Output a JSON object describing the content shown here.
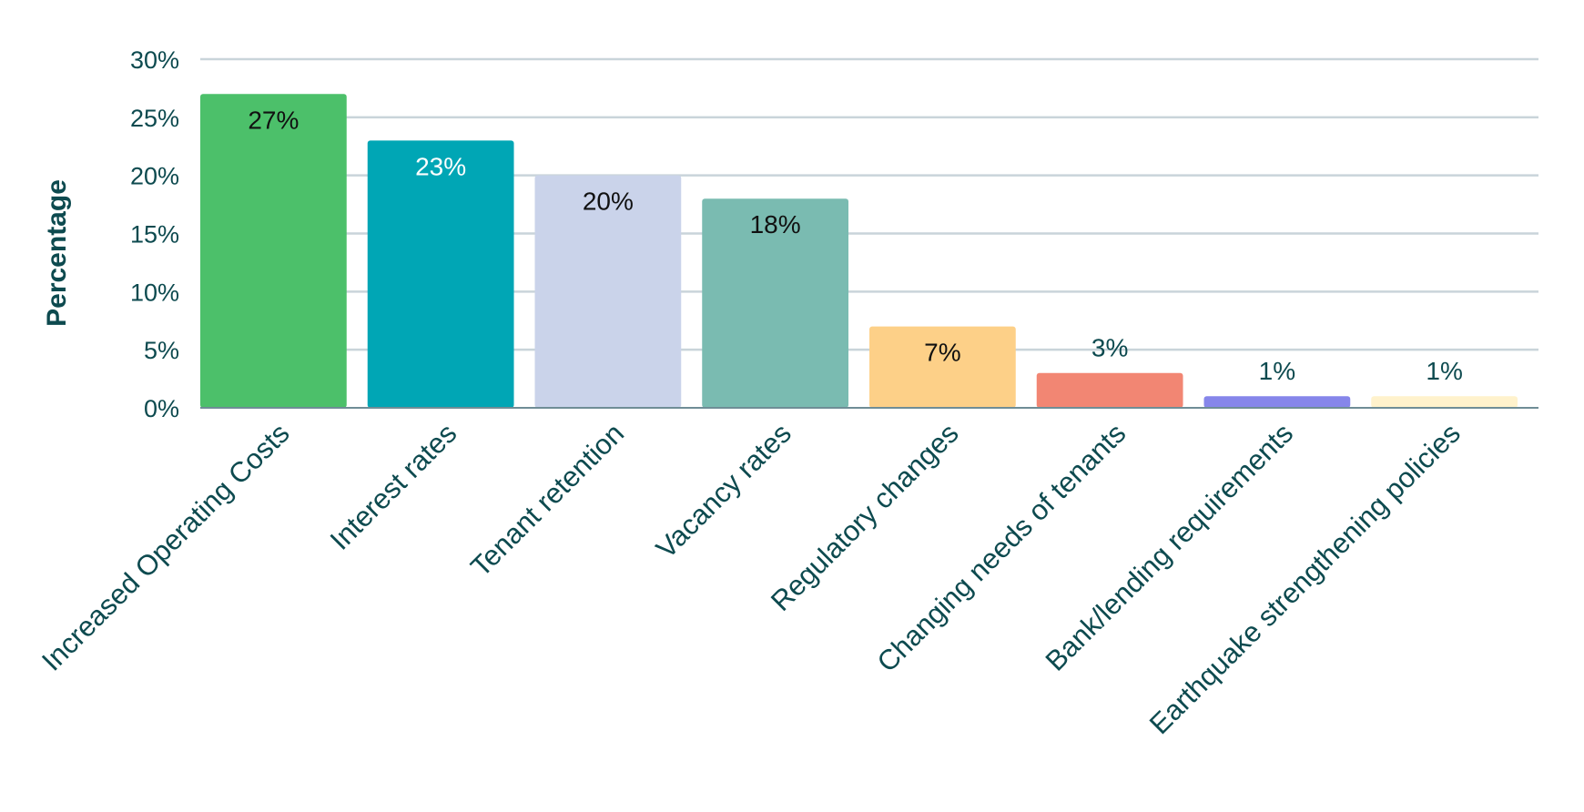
{
  "chart_data": {
    "type": "bar",
    "title": "",
    "xlabel": "",
    "ylabel": "Percentage",
    "ylim": [
      0,
      30
    ],
    "yticks": [
      0,
      5,
      10,
      15,
      20,
      25,
      30
    ],
    "ytick_labels": [
      "0%",
      "5%",
      "10%",
      "15%",
      "20%",
      "25%",
      "30%"
    ],
    "grid": true,
    "categories": [
      "Increased Operating Costs",
      "Interest rates",
      "Tenant retention",
      "Vacancy rates",
      "Regulatory changes",
      "Changing needs of tenants",
      "Bank/lending requirements",
      "Earthquake strengthening policies"
    ],
    "values": [
      27,
      23,
      20,
      18,
      7,
      3,
      1,
      1
    ],
    "data_labels": [
      "27%",
      "23%",
      "20%",
      "18%",
      "7%",
      "3%",
      "1%",
      "1%"
    ],
    "colors": [
      "#4cc06a",
      "#00a6b5",
      "#cad3ea",
      "#7abbb1",
      "#fdd088",
      "#f28673",
      "#8686ea",
      "#fff2cc"
    ],
    "label_colors": [
      "#111111",
      "#ffffff",
      "#111111",
      "#111111",
      "#111111",
      "#0d4a4f",
      "#0d4a4f",
      "#0d4a4f"
    ]
  }
}
